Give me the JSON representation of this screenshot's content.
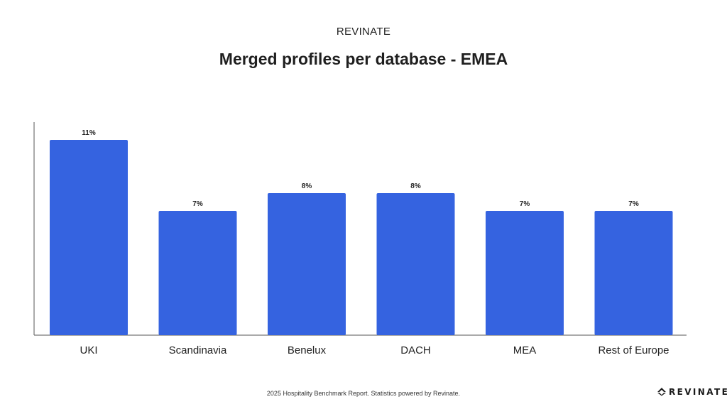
{
  "header": {
    "brand": "REVINATE"
  },
  "footer": {
    "note": "2025 Hospitality Benchmark Report. Statistics powered by Revinate.",
    "logo_text": "REVINATE"
  },
  "colors": {
    "bar": "#3563e0",
    "axis": "#555555",
    "text": "#222222"
  },
  "chart_data": {
    "type": "bar",
    "title": "Merged profiles per database - EMEA",
    "xlabel": "",
    "ylabel": "",
    "categories": [
      "UKI",
      "Scandinavia",
      "Benelux",
      "DACH",
      "MEA",
      "Rest of Europe"
    ],
    "values": [
      11,
      7,
      8,
      8,
      7,
      7
    ],
    "data_labels": [
      "11%",
      "7%",
      "8%",
      "8%",
      "7%",
      "7%"
    ],
    "ylim": [
      0,
      12
    ],
    "grid": false,
    "legend": "none"
  }
}
